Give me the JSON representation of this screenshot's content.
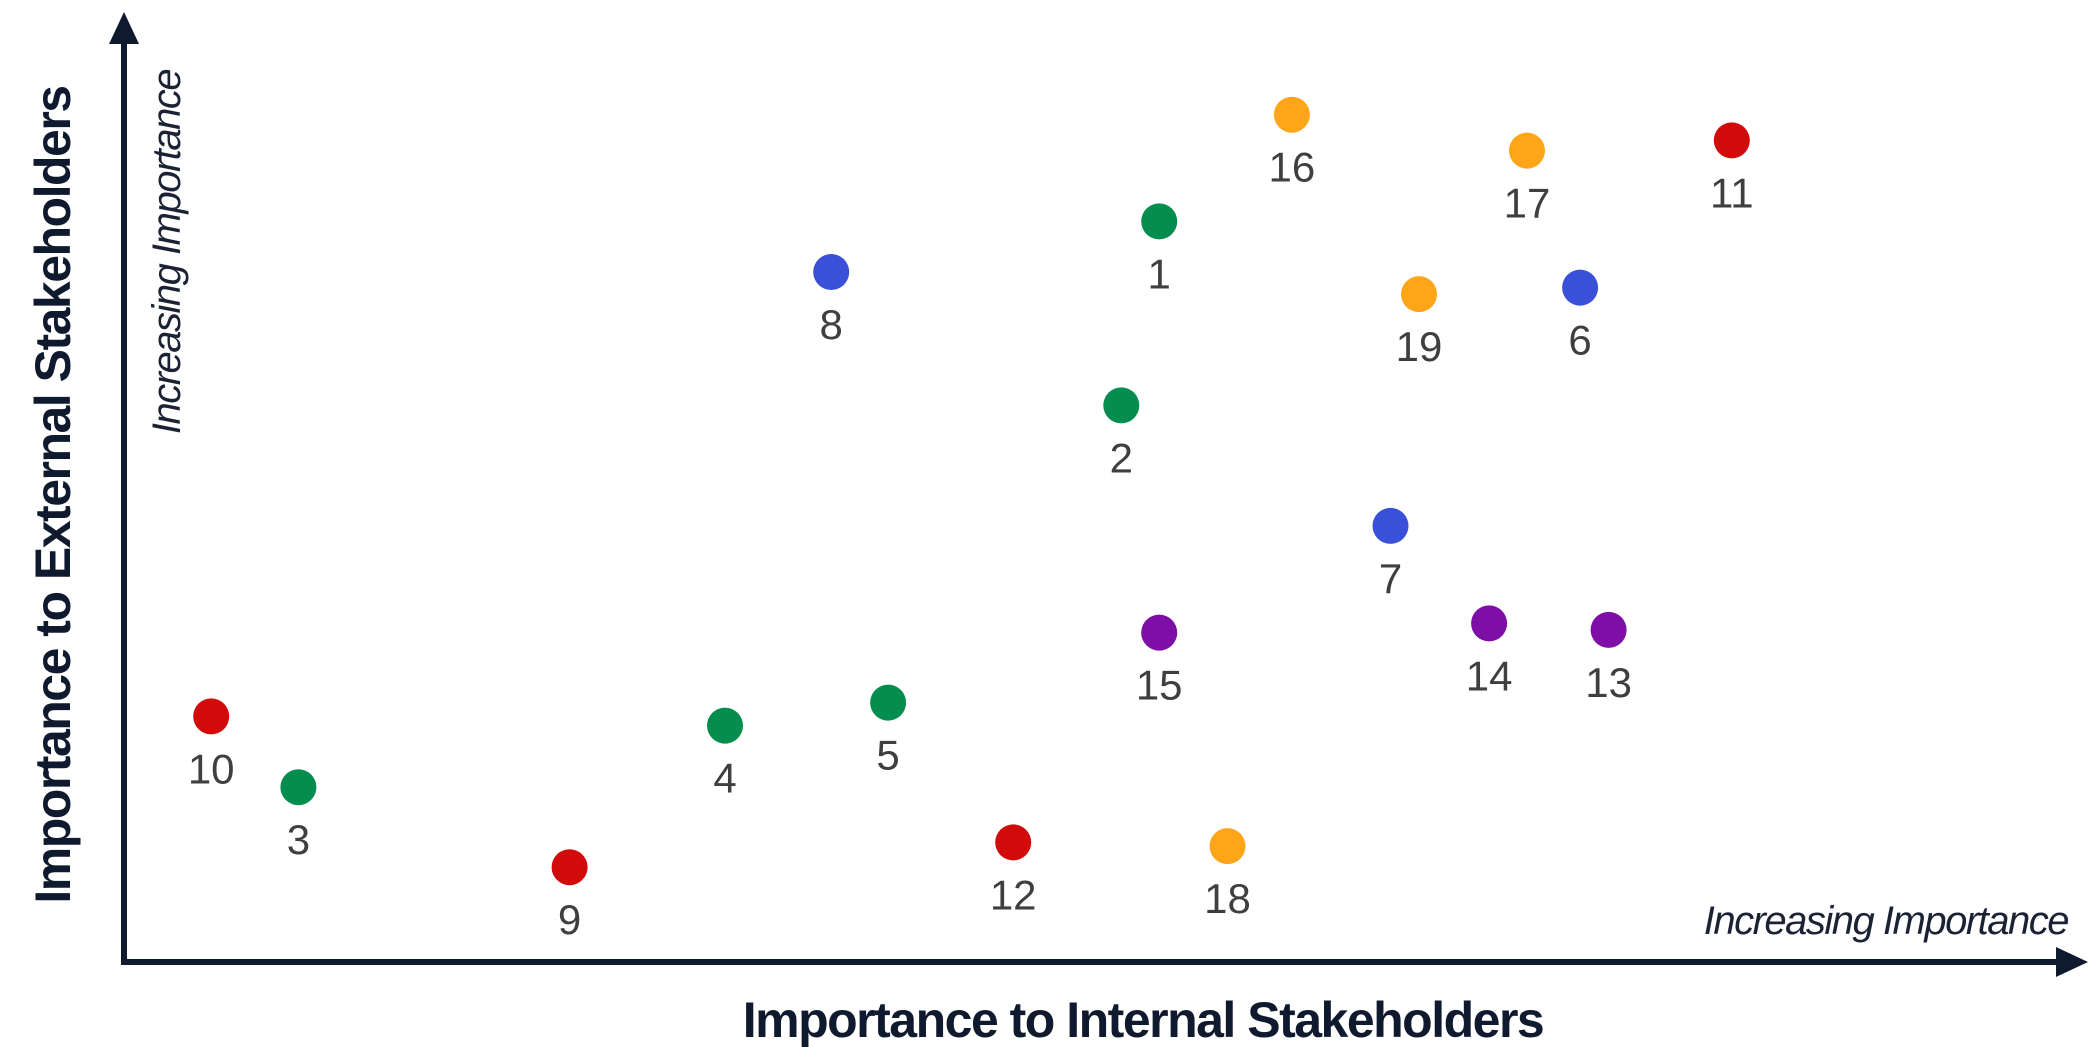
{
  "chart_data": {
    "type": "scatter",
    "title": "",
    "xlabel": "Importance to Internal Stakeholders",
    "ylabel": "Importance to External Stakeholders",
    "x_direction_note": "Increasing Importance",
    "y_direction_note": "Increasing Importance",
    "xlim": [
      0,
      10
    ],
    "ylim": [
      0,
      10
    ],
    "grid": false,
    "legend": "none",
    "points": [
      {
        "label": "1",
        "x": 5.46,
        "y": 8.05,
        "color": "#058c4f"
      },
      {
        "label": "2",
        "x": 5.26,
        "y": 6.05,
        "color": "#058c4f"
      },
      {
        "label": "3",
        "x": 0.92,
        "y": 1.9,
        "color": "#058c4f"
      },
      {
        "label": "4",
        "x": 3.17,
        "y": 2.57,
        "color": "#058c4f"
      },
      {
        "label": "5",
        "x": 4.03,
        "y": 2.82,
        "color": "#058c4f"
      },
      {
        "label": "6",
        "x": 7.68,
        "y": 7.33,
        "color": "#3a50d9"
      },
      {
        "label": "7",
        "x": 6.68,
        "y": 4.74,
        "color": "#3a50d9"
      },
      {
        "label": "8",
        "x": 3.73,
        "y": 7.5,
        "color": "#3a50d9"
      },
      {
        "label": "9",
        "x": 2.35,
        "y": 1.03,
        "color": "#d10a0a"
      },
      {
        "label": "10",
        "x": 0.46,
        "y": 2.67,
        "color": "#d10a0a"
      },
      {
        "label": "11",
        "x": 8.48,
        "y": 8.93,
        "color": "#d10a0a"
      },
      {
        "label": "12",
        "x": 4.69,
        "y": 1.3,
        "color": "#d10a0a"
      },
      {
        "label": "13",
        "x": 7.83,
        "y": 3.61,
        "color": "#7d0ea6"
      },
      {
        "label": "14",
        "x": 7.2,
        "y": 3.68,
        "color": "#7d0ea6"
      },
      {
        "label": "15",
        "x": 5.46,
        "y": 3.58,
        "color": "#7d0ea6"
      },
      {
        "label": "16",
        "x": 6.16,
        "y": 9.21,
        "color": "#ffa51a"
      },
      {
        "label": "17",
        "x": 7.4,
        "y": 8.82,
        "color": "#ffa51a"
      },
      {
        "label": "18",
        "x": 5.82,
        "y": 1.26,
        "color": "#ffa51a"
      },
      {
        "label": "19",
        "x": 6.83,
        "y": 7.26,
        "color": "#ffa51a"
      }
    ]
  }
}
